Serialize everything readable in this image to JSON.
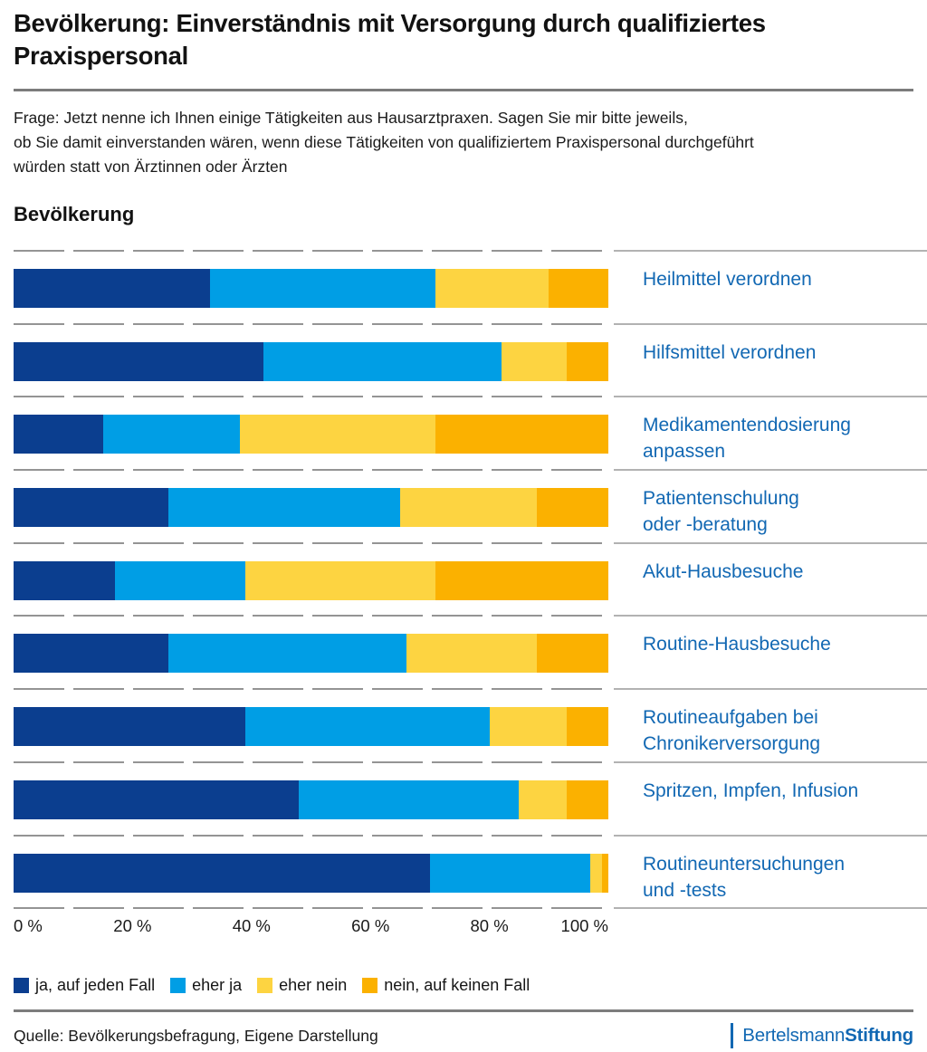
{
  "header": {
    "title": "Bevölkerung: Einverständnis mit Versorgung durch qualifiziertes\nPraxispersonal",
    "question": "Frage: Jetzt nenne ich Ihnen einige Tätigkeiten aus Hausarztpraxen. Sagen Sie mir bitte jeweils,\nob Sie damit einverstanden wären, wenn diese Tätigkeiten von qualifiziertem Praxispersonal durchgeführt\nwürden statt von Ärztinnen oder Ärzten",
    "section_label": "Bevölkerung"
  },
  "chart_data": {
    "type": "bar",
    "stacked": true,
    "orientation": "horizontal",
    "unit": "%",
    "categories": [
      "Heilmittel verordnen",
      "Hilfsmittel verordnen",
      "Medikamentendosierung\nanpassen",
      "Patientenschulung\noder -beratung",
      "Akut-Hausbesuche",
      "Routine-Hausbesuche",
      "Routineaufgaben bei\nChronikerversorgung",
      "Spritzen, Impfen, Infusion",
      "Routineuntersuchungen\nund -tests"
    ],
    "series": [
      {
        "name": "ja, auf jeden Fall",
        "color": "#0b3e8f",
        "values": [
          33,
          42,
          15,
          26,
          17,
          26,
          39,
          48,
          70
        ]
      },
      {
        "name": "eher ja",
        "color": "#009ee5",
        "values": [
          38,
          40,
          23,
          39,
          22,
          40,
          41,
          37,
          27
        ]
      },
      {
        "name": "eher nein",
        "color": "#fdd441",
        "values": [
          19,
          11,
          33,
          23,
          32,
          22,
          13,
          8,
          2
        ]
      },
      {
        "name": "nein, auf keinen Fall",
        "color": "#fbb100",
        "values": [
          10,
          7,
          29,
          12,
          29,
          12,
          7,
          7,
          1
        ]
      }
    ],
    "x_axis": {
      "ticks": [
        "0 %",
        "20 %",
        "40 %",
        "60 %",
        "80 %",
        "100 %"
      ],
      "min": 0,
      "max": 100
    },
    "legend_position": "bottom",
    "grid": "dashed row separators",
    "xlabel": "",
    "ylabel": ""
  },
  "footer": {
    "source": "Quelle: Bevölkerungsbefragung, Eigene Darstellung",
    "logo": {
      "part1": "Bertelsmann",
      "part2": "Stiftung"
    }
  },
  "colors": {
    "label_blue": "#1268b3",
    "divider_gray": "#7c7c7c",
    "dashed_line_gray": "#949494",
    "label_separator_gray": "#b2b2b2",
    "background": "#ffffff"
  }
}
